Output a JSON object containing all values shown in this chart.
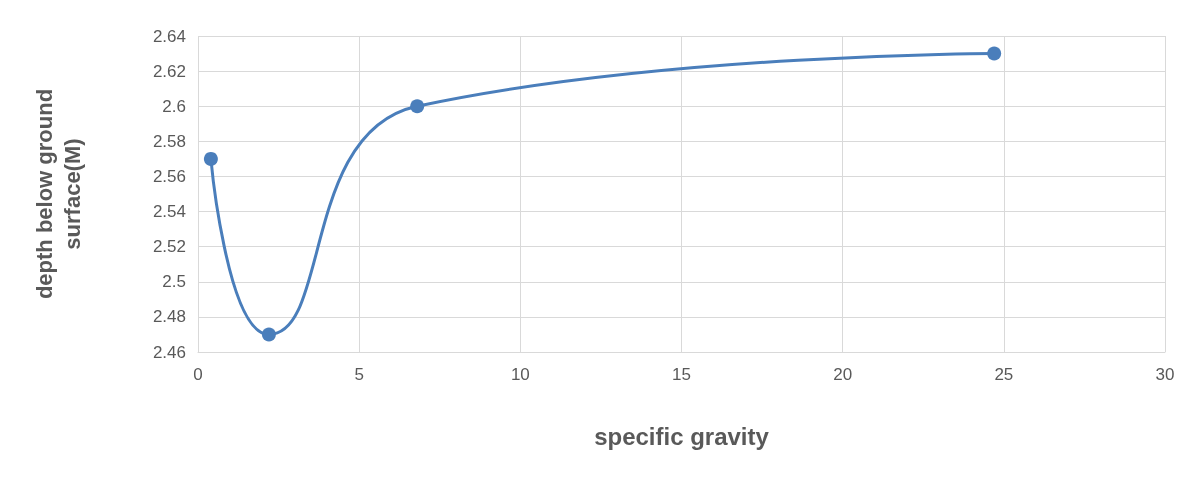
{
  "chart_data": {
    "type": "line",
    "xlabel": "specific gravity",
    "ylabel": "depth below ground surface(M)",
    "x": [
      0.4,
      2.2,
      6.8,
      24.7
    ],
    "series": [
      {
        "color": "#4a7ebb",
        "values": [
          2.57,
          2.47,
          2.6,
          2.63
        ]
      }
    ],
    "xlim": [
      0,
      30
    ],
    "xticks": [
      0,
      5,
      10,
      15,
      20,
      25,
      30
    ],
    "ylim": [
      2.46,
      2.64
    ],
    "yticks": [
      2.46,
      2.48,
      2.5,
      2.52,
      2.54,
      2.56,
      2.58,
      2.6,
      2.62,
      2.64
    ],
    "grid": true,
    "marker": "circle",
    "line_style": "solid"
  }
}
